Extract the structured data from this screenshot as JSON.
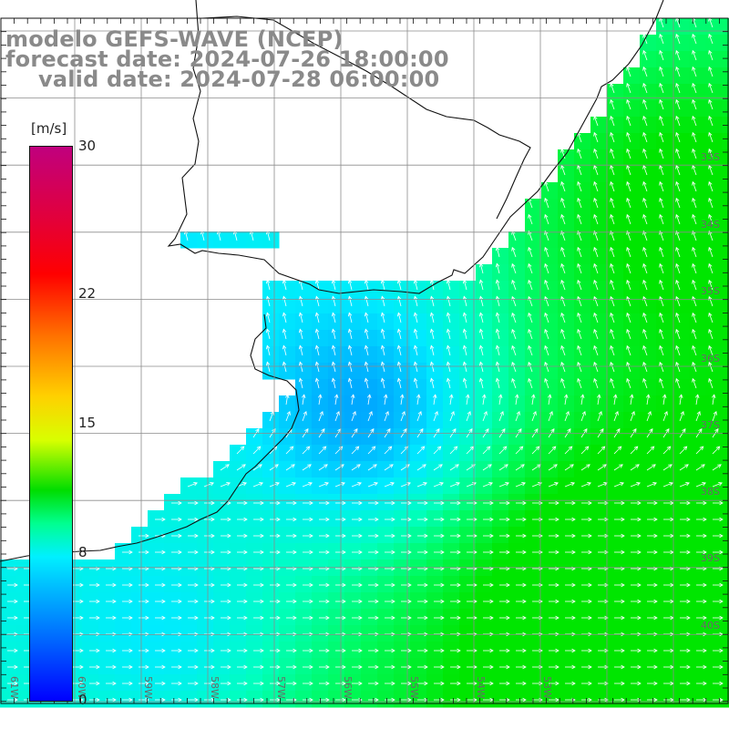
{
  "header": {
    "line1": "modelo GEFS-WAVE (NCEP)",
    "line2": "forecast date: 2024-07-26 18:00:00",
    "line3": "valid date: 2024-07-28 06:00:00"
  },
  "colorbar": {
    "unit": "[m/s]",
    "ticks": [
      {
        "label": "30",
        "value": 30
      },
      {
        "label": "22",
        "value": 22
      },
      {
        "label": "15",
        "value": 15
      },
      {
        "label": "8",
        "value": 8
      },
      {
        "label": "0",
        "value": 0
      }
    ]
  },
  "lat_labels": [
    "33S",
    "34S",
    "35S",
    "36S",
    "37S",
    "38S",
    "39S",
    "40S"
  ],
  "lon_labels": [
    "61W",
    "60W",
    "59W",
    "58W",
    "57W",
    "56W",
    "55W",
    "54W",
    "53W"
  ],
  "colors": {
    "land": "#ffffff",
    "coast": "#111111",
    "grid": "#8c8c8c",
    "arrow": "#ffffff",
    "title": "#8a8a8a"
  }
}
